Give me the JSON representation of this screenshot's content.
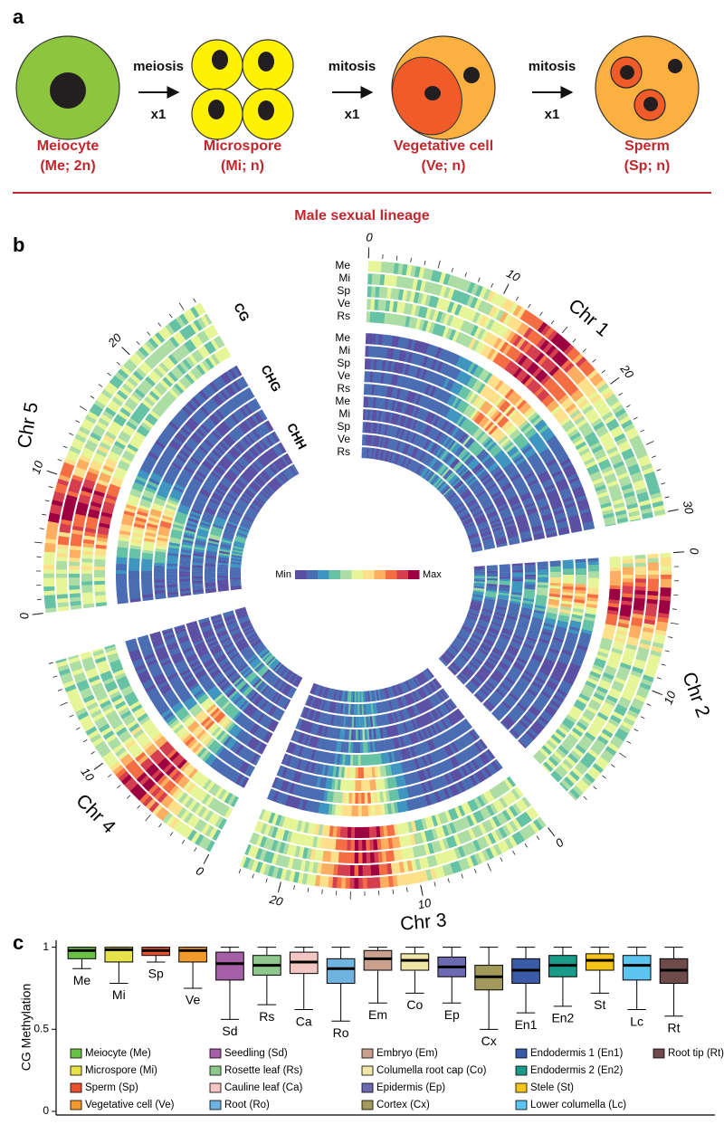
{
  "panel_a": {
    "label": "a",
    "cells": [
      {
        "name": "Meiocyte",
        "detail": "(Me; 2n)"
      },
      {
        "name": "Microspore",
        "detail": "(Mi; n)"
      },
      {
        "name": "Vegetative cell",
        "detail": "(Ve; n)"
      },
      {
        "name": "Sperm",
        "detail": "(Sp; n)"
      }
    ],
    "steps": [
      {
        "process": "meiosis",
        "count": "x1"
      },
      {
        "process": "mitosis",
        "count": "x1"
      },
      {
        "process": "mitosis",
        "count": "x1"
      }
    ],
    "lineage": "Male sexual lineage"
  },
  "panel_b": {
    "label": "b",
    "chromosomes": [
      {
        "name": "Chr 1",
        "ticks": [
          0,
          10,
          20,
          30
        ]
      },
      {
        "name": "Chr 2",
        "ticks": [
          0,
          10
        ]
      },
      {
        "name": "Chr 3",
        "ticks": [
          0,
          10,
          20
        ]
      },
      {
        "name": "Chr 4",
        "ticks": [
          0,
          10
        ]
      },
      {
        "name": "Chr 5",
        "ticks": [
          0,
          10,
          20
        ]
      }
    ],
    "contexts": [
      "CG",
      "CHG",
      "CHH"
    ],
    "tracks": [
      "Me",
      "Mi",
      "Sp",
      "Ve",
      "Rs"
    ],
    "legend": {
      "min": "Min",
      "max": "Max"
    }
  },
  "chart_data": {
    "type": "box",
    "label": "c",
    "ylabel": "CG Methylation",
    "categories": [
      "Me",
      "Mi",
      "Sp",
      "Ve",
      "Sd",
      "Rs",
      "Ca",
      "Ro",
      "Em",
      "Co",
      "Ep",
      "Cx",
      "En1",
      "En2",
      "St",
      "Lc",
      "Rt"
    ],
    "legend_labels": [
      "Meiocyte (Me)",
      "Microspore (Mi)",
      "Sperm (Sp)",
      "Vegetative cell (Ve)",
      "Seedling (Sd)",
      "Rosette leaf (Rs)",
      "Cauline leaf (Ca)",
      "Root (Ro)",
      "Embryo (Em)",
      "Columella root cap (Co)",
      "Epidermis (Ep)",
      "Cortex (Cx)",
      "Endodermis 1 (En1)",
      "Endodermis 2 (En2)",
      "Stele (St)",
      "Lower columella (Lc)",
      "Root tip (Rt)"
    ],
    "colors": [
      "#6abf45",
      "#e6e34a",
      "#e9522e",
      "#f39a2e",
      "#a45fa6",
      "#8fc88d",
      "#f4c6c2",
      "#6fb3e0",
      "#c9a08e",
      "#efe6a8",
      "#6b69b0",
      "#a29a5a",
      "#3b5ba8",
      "#1a9b8a",
      "#f5c518",
      "#5cc4ef",
      "#6e4a4a"
    ],
    "whisker_low": [
      0.87,
      0.78,
      0.91,
      0.75,
      0.56,
      0.65,
      0.62,
      0.55,
      0.66,
      0.72,
      0.66,
      0.5,
      0.6,
      0.64,
      0.72,
      0.62,
      0.58
    ],
    "q1": [
      0.93,
      0.91,
      0.95,
      0.91,
      0.8,
      0.83,
      0.84,
      0.78,
      0.86,
      0.86,
      0.82,
      0.74,
      0.78,
      0.82,
      0.86,
      0.8,
      0.78
    ],
    "median": [
      0.98,
      0.985,
      0.98,
      0.98,
      0.9,
      0.89,
      0.91,
      0.87,
      0.93,
      0.92,
      0.88,
      0.82,
      0.86,
      0.89,
      0.92,
      0.89,
      0.86
    ],
    "q3": [
      1,
      1,
      1,
      1,
      0.97,
      0.95,
      0.97,
      0.93,
      0.98,
      0.96,
      0.94,
      0.89,
      0.93,
      0.95,
      0.96,
      0.95,
      0.93
    ],
    "whisker_high": [
      1,
      1,
      1,
      1,
      1,
      1,
      1,
      1,
      1,
      1,
      1,
      1,
      1,
      1,
      1,
      1,
      1
    ],
    "ylim": [
      0,
      1.02
    ],
    "yticks": [
      0,
      0.5,
      1
    ]
  }
}
